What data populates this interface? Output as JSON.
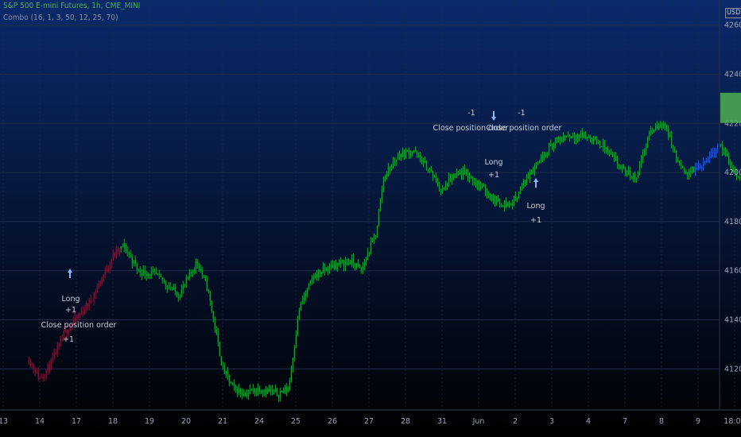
{
  "header": {
    "symbol_title": "S&P 500 E-mini Futures, 1h, CME_MINI",
    "indicator_title": "Combo (16, 1, 3, 50, 12, 25, 70)",
    "currency": "USD"
  },
  "colors": {
    "bg_top": "#0b2a6b",
    "bg_bottom": "#000000",
    "bull_candle": "#1e9e3a",
    "bear_candle": "#7a1a3a",
    "strategy_candle": "#2a5bd8",
    "last_price_box": "#4caf50",
    "grid": "#1f2c4a",
    "axis_text": "#9aa3b5"
  },
  "chart_data": {
    "type": "candlestick",
    "timeframe": "1h",
    "y_ticks": [
      4120,
      4140,
      4160,
      4180,
      4200,
      4220,
      4240,
      4260
    ],
    "y_tick_labels": [
      "4120.00",
      "4140.00",
      "4160.00",
      "4180.00",
      "4200.00",
      "4220.00",
      "4240.00",
      "4260.00"
    ],
    "ylim": [
      4108,
      4264
    ],
    "x_tick_labels": [
      "13",
      "14",
      "17",
      "18",
      "19",
      "20",
      "21",
      "24",
      "25",
      "26",
      "27",
      "28",
      "31",
      "Jun",
      "2",
      "3",
      "4",
      "7",
      "8",
      "9",
      "18:00"
    ],
    "price_path": [
      [
        13.7,
        4124
      ],
      [
        14.0,
        4116
      ],
      [
        14.3,
        4122
      ],
      [
        14.7,
        4135
      ],
      [
        15.4,
        4148
      ],
      [
        16.0,
        4166
      ],
      [
        16.3,
        4170
      ],
      [
        16.7,
        4160
      ],
      [
        17.2,
        4158
      ],
      [
        17.5,
        4154
      ],
      [
        17.8,
        4150
      ],
      [
        18.1,
        4158
      ],
      [
        18.3,
        4164
      ],
      [
        18.6,
        4152
      ],
      [
        19.0,
        4120
      ],
      [
        19.3,
        4112
      ],
      [
        19.6,
        4110
      ],
      [
        20.0,
        4112
      ],
      [
        20.5,
        4110
      ],
      [
        20.8,
        4112
      ],
      [
        21.1,
        4145
      ],
      [
        21.5,
        4158
      ],
      [
        22.0,
        4162
      ],
      [
        22.5,
        4164
      ],
      [
        22.8,
        4160
      ],
      [
        23.0,
        4168
      ],
      [
        23.2,
        4176
      ],
      [
        23.4,
        4198
      ],
      [
        23.8,
        4207
      ],
      [
        24.2,
        4209
      ],
      [
        24.7,
        4200
      ],
      [
        25.0,
        4192
      ],
      [
        25.2,
        4197
      ],
      [
        25.6,
        4200
      ],
      [
        26.0,
        4195
      ],
      [
        26.5,
        4188
      ],
      [
        26.9,
        4187
      ],
      [
        27.4,
        4200
      ],
      [
        27.9,
        4210
      ],
      [
        28.4,
        4215
      ],
      [
        28.9,
        4215
      ],
      [
        29.4,
        4211
      ],
      [
        29.7,
        4205
      ],
      [
        30.0,
        4200
      ],
      [
        30.3,
        4198
      ],
      [
        30.5,
        4208
      ],
      [
        30.7,
        4217
      ],
      [
        31.1,
        4220
      ],
      [
        31.4,
        4206
      ],
      [
        31.6,
        4200
      ],
      [
        31.9,
        4201
      ],
      [
        32.2,
        4205
      ],
      [
        32.6,
        4212
      ],
      [
        32.9,
        4202
      ],
      [
        33.2,
        4196
      ],
      [
        33.6,
        4188
      ],
      [
        33.9,
        4192
      ],
      [
        34.2,
        4193
      ],
      [
        34.5,
        4198
      ],
      [
        34.8,
        4201
      ],
      [
        35.1,
        4218
      ],
      [
        35.4,
        4228
      ],
      [
        35.7,
        4226
      ],
      [
        36.0,
        4225
      ],
      [
        36.3,
        4227
      ],
      [
        36.6,
        4226
      ],
      [
        37.0,
        4228
      ],
      [
        37.3,
        4225
      ]
    ],
    "trades": [
      {
        "type": "long_entry",
        "label": "Long",
        "qty": "+1"
      },
      {
        "type": "close",
        "label": "Close position order",
        "qty": "+1"
      },
      {
        "type": "close",
        "label": "Close position order",
        "qty": "-1"
      },
      {
        "type": "long_entry",
        "label": "Long",
        "qty": "+1"
      },
      {
        "type": "close",
        "label": "Close position order",
        "qty": "-1"
      },
      {
        "type": "long_entry",
        "label": "Long",
        "qty": "+1"
      }
    ],
    "last_price": 4226,
    "grid": true,
    "legend": "top-left"
  }
}
